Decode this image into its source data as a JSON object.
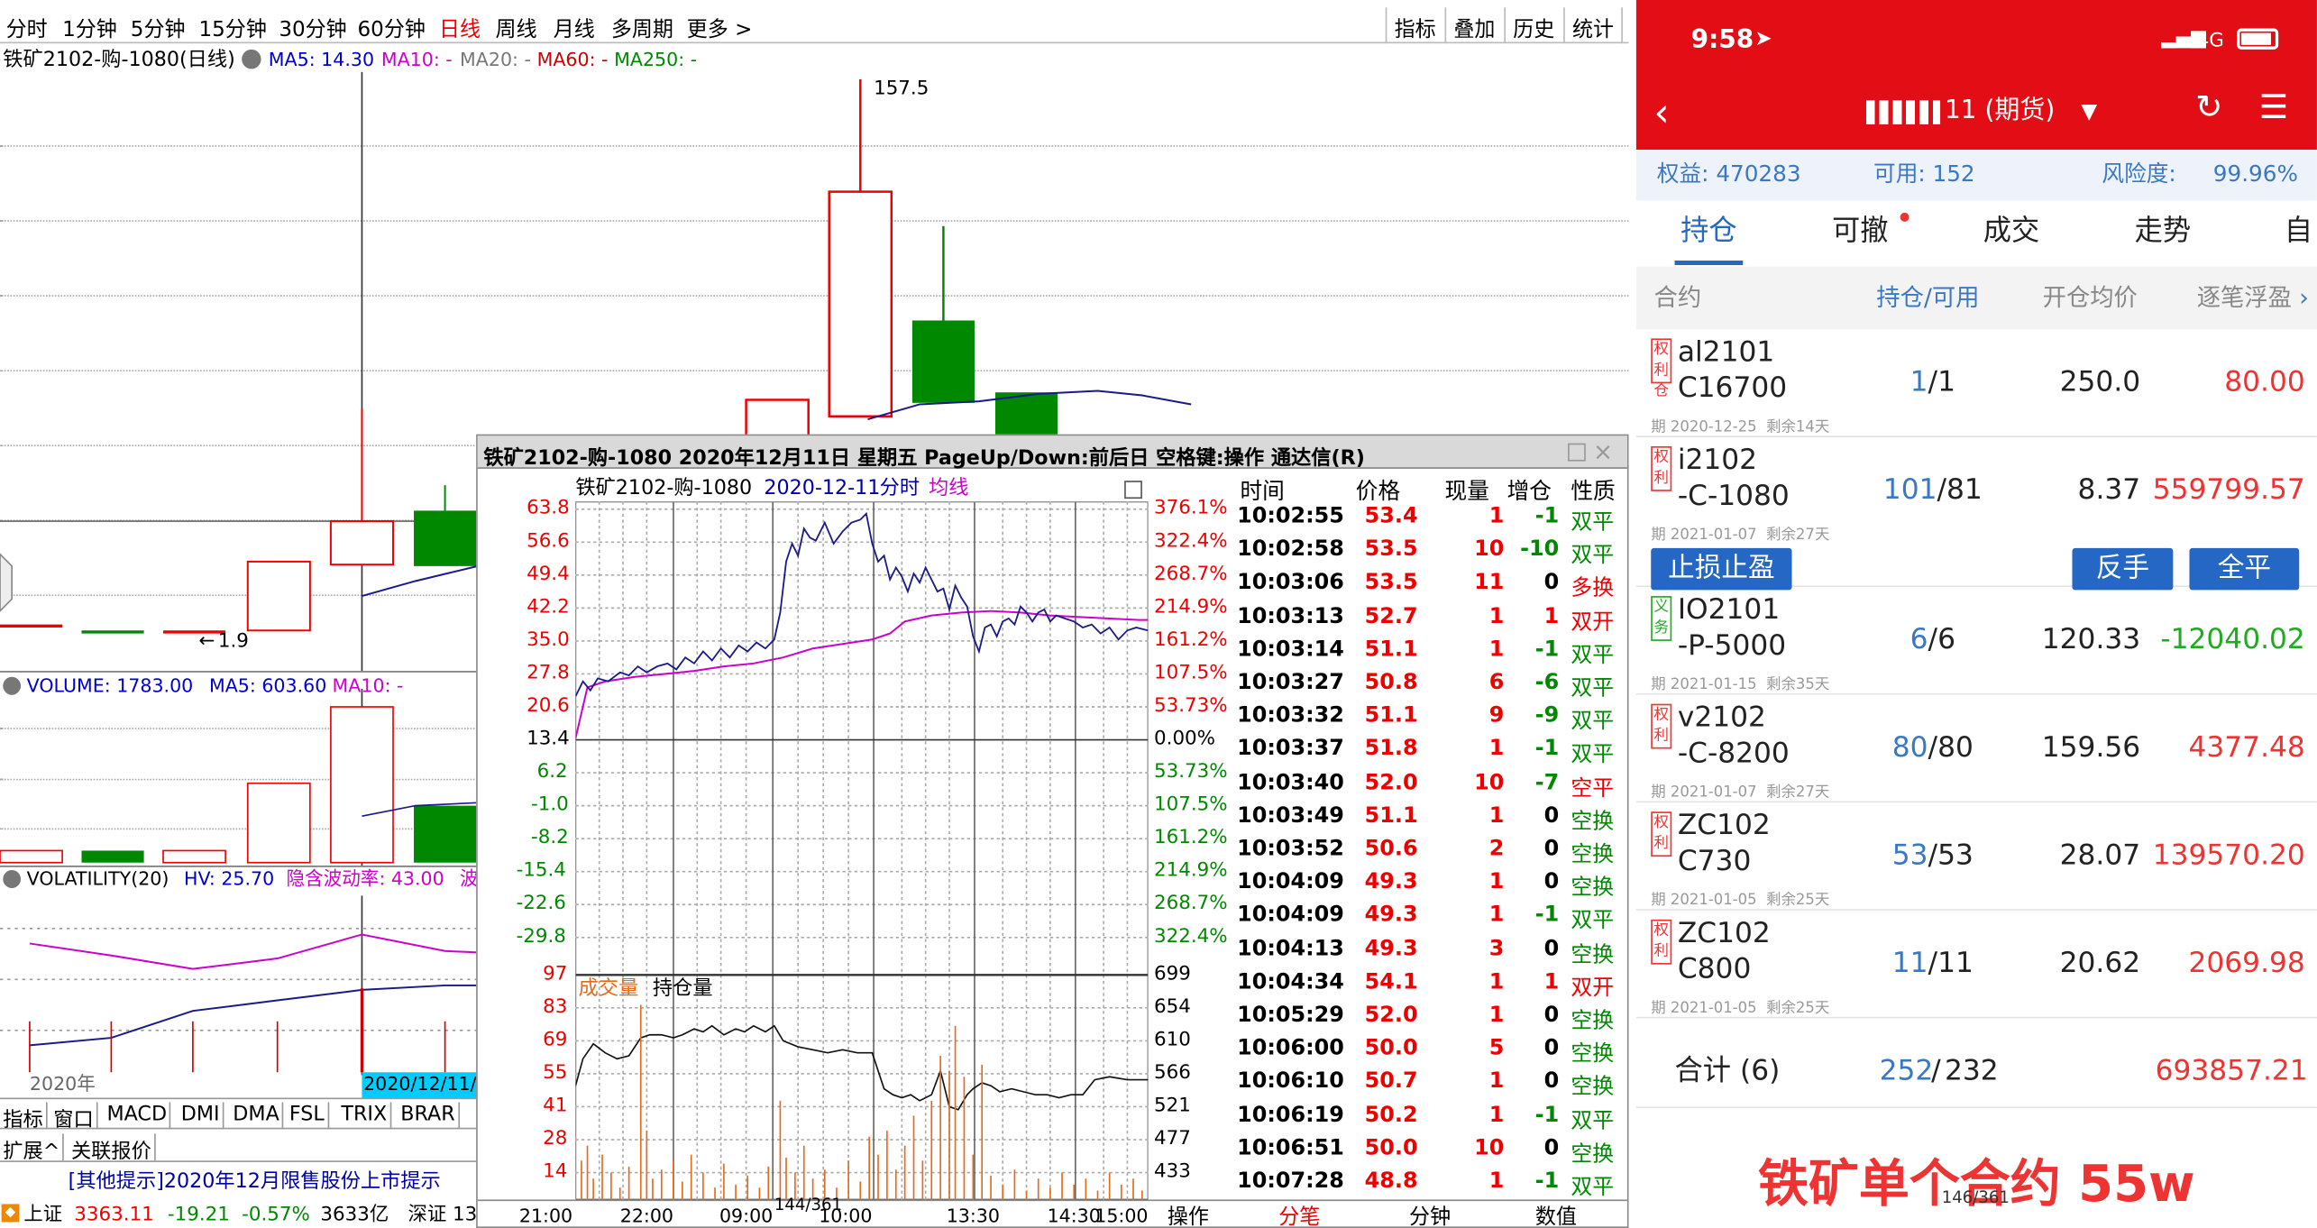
{
  "left": {
    "periods": [
      "分时",
      "1分钟",
      "5分钟",
      "15分钟",
      "30分钟",
      "60分钟",
      "日线",
      "周线",
      "月线",
      "多周期",
      "更多 >"
    ],
    "active_period": "日线",
    "right_buttons": [
      "指标",
      "叠加",
      "历史",
      "统计"
    ],
    "chart_title": "铁矿2102-购-1080(日线)",
    "ma_labels": [
      "MA5: 14.30",
      "MA10: -",
      "MA20: -",
      "MA60: -",
      "MA250: -"
    ],
    "ma_colors": [
      "#0000cc",
      "#cc00cc",
      "#777777",
      "#cc0000",
      "#008800"
    ],
    "high_mark": "157.5",
    "low_mark": "1.9",
    "volume_label": "VOLUME: 1783.00",
    "vol_ma5": "MA5: 603.60",
    "vol_ma10": "MA10: -",
    "volatility_label": "VOLATILITY(20)",
    "hv": "HV: 25.70",
    "iv": "隐含波动率: 43.00",
    "iv_extra": "波",
    "year_label": "2020年",
    "date_marker": "2020/12/11/",
    "tabs": [
      "指标",
      "窗口",
      "MACD",
      "DMI",
      "DMA",
      "FSL",
      "TRIX",
      "BRAR"
    ],
    "tabs2": [
      "扩展^",
      "关联报价"
    ],
    "notice": "[其他提示]2020年12月限售股份上市提示",
    "status": {
      "name": "上证",
      "value": "3363.11",
      "chg": "-19.21",
      "pct": "-0.57%",
      "amt": "3633亿",
      "next": "深证 13"
    }
  },
  "popup": {
    "title": "铁矿2102-购-1080 2020年12月11日 星期五 PageUp/Down:前后日 空格键:操作 通达信(R)",
    "chart_name": "铁矿2102-购-1080",
    "chart_date": "2020-12-11",
    "chart_mode": "分时",
    "avg_label": "均线",
    "price_left": [
      "63.8",
      "56.6",
      "49.4",
      "42.2",
      "35.0",
      "27.8",
      "20.6",
      "13.4",
      "6.2",
      "-1.0",
      "-8.2",
      "-15.4",
      "-22.6",
      "-29.8"
    ],
    "pct_right": [
      "376.1%",
      "322.4%",
      "268.7%",
      "214.9%",
      "161.2%",
      "107.5%",
      "53.73%",
      "0.00%",
      "53.73%",
      "107.5%",
      "161.2%",
      "214.9%",
      "268.7%",
      "322.4%"
    ],
    "vol_left": [
      "97",
      "83",
      "69",
      "55",
      "41",
      "28",
      "14"
    ],
    "oi_right": [
      "699",
      "654",
      "610",
      "566",
      "521",
      "477",
      "433"
    ],
    "vol_label": "成交量",
    "oi_label": "持仓量",
    "times": [
      "21:00",
      "22:00",
      "09:00",
      "10:00",
      "13:30",
      "14:30",
      "15:00"
    ],
    "trade_headers": [
      "时间",
      "价格",
      "现量",
      "增仓",
      "性质"
    ],
    "trades": [
      [
        "10:02:55",
        "53.4",
        "1",
        "-1",
        "双平"
      ],
      [
        "10:02:58",
        "53.5",
        "10",
        "-10",
        "双平"
      ],
      [
        "10:03:06",
        "53.5",
        "11",
        "0",
        "多换"
      ],
      [
        "10:03:13",
        "52.7",
        "1",
        "1",
        "双开"
      ],
      [
        "10:03:14",
        "51.1",
        "1",
        "-1",
        "双平"
      ],
      [
        "10:03:27",
        "50.8",
        "6",
        "-6",
        "双平"
      ],
      [
        "10:03:32",
        "51.1",
        "9",
        "-9",
        "双平"
      ],
      [
        "10:03:37",
        "51.8",
        "1",
        "-1",
        "双平"
      ],
      [
        "10:03:40",
        "52.0",
        "10",
        "-7",
        "空平"
      ],
      [
        "10:03:49",
        "51.1",
        "1",
        "0",
        "空换"
      ],
      [
        "10:03:52",
        "50.6",
        "2",
        "0",
        "空换"
      ],
      [
        "10:04:09",
        "49.3",
        "1",
        "0",
        "空换"
      ],
      [
        "10:04:09",
        "49.3",
        "1",
        "-1",
        "双平"
      ],
      [
        "10:04:13",
        "49.3",
        "3",
        "0",
        "空换"
      ],
      [
        "10:04:34",
        "54.1",
        "1",
        "1",
        "双开"
      ],
      [
        "10:05:29",
        "52.0",
        "1",
        "0",
        "空换"
      ],
      [
        "10:06:00",
        "50.0",
        "5",
        "0",
        "空换"
      ],
      [
        "10:06:10",
        "50.7",
        "1",
        "0",
        "空换"
      ],
      [
        "10:06:19",
        "50.2",
        "1",
        "-1",
        "双平"
      ],
      [
        "10:06:51",
        "50.0",
        "10",
        "0",
        "空换"
      ],
      [
        "10:07:28",
        "48.8",
        "1",
        "-1",
        "双平"
      ]
    ],
    "bottom_tabs": [
      "操作",
      "分笔",
      "分钟",
      "数值"
    ],
    "page_num": "144/361"
  },
  "phone": {
    "time": "9:58",
    "signal": "4G",
    "account_title": "11 (期货)",
    "equity": "权益: 470283",
    "available": "可用: 152",
    "risk_label": "风险度:",
    "risk_value": "99.96%",
    "tabs": [
      "持仓",
      "可撤",
      "成交",
      "走势",
      "自"
    ],
    "headers": [
      "合约",
      "持仓/可用",
      "开仓均价",
      "逐笔浮盈"
    ],
    "positions": [
      {
        "tag": "权利仓",
        "tag_type": "red",
        "sym1": "al2101",
        "sym2": "C16700",
        "exp": "2020-12-25",
        "remain": "剩余14天",
        "hold": "1",
        "avail": "1",
        "avg": "250.0",
        "pnl": "80.00",
        "pnl_color": "#e33"
      },
      {
        "tag": "权利",
        "tag_type": "red",
        "sym1": "i2102",
        "sym2": "-C-1080",
        "exp": "2021-01-07",
        "remain": "剩余27天",
        "hold": "101",
        "avail": "81",
        "avg": "8.37",
        "pnl": "559799.57",
        "pnl_color": "#e33"
      },
      {
        "tag": "义务",
        "tag_type": "green",
        "sym1": "IO2101",
        "sym2": "-P-5000",
        "exp": "2021-01-15",
        "remain": "剩余35天",
        "hold": "6",
        "avail": "6",
        "avg": "120.33",
        "pnl": "-12040.02",
        "pnl_color": "#2a2"
      },
      {
        "tag": "权利",
        "tag_type": "red",
        "sym1": "v2102",
        "sym2": "-C-8200",
        "exp": "2021-01-07",
        "remain": "剩余27天",
        "hold": "80",
        "avail": "80",
        "avg": "159.56",
        "pnl": "4377.48",
        "pnl_color": "#e33"
      },
      {
        "tag": "权利",
        "tag_type": "red",
        "sym1": "ZC102",
        "sym2": "C730",
        "exp": "2021-01-05",
        "remain": "剩余25天",
        "hold": "53",
        "avail": "53",
        "avg": "28.07",
        "pnl": "139570.20",
        "pnl_color": "#e33"
      },
      {
        "tag": "权利",
        "tag_type": "red",
        "sym1": "ZC102",
        "sym2": "C800",
        "exp": "2021-01-05",
        "remain": "剩余25天",
        "hold": "11",
        "avail": "11",
        "avg": "20.62",
        "pnl": "2069.98",
        "pnl_color": "#e33"
      }
    ],
    "buttons": [
      "止损止盈",
      "反手",
      "全平"
    ],
    "total_label": "合计 (6)",
    "total_hold": "252",
    "total_avail": "232",
    "total_pnl": "693857.21",
    "caption": "铁矿单个合约 55w",
    "page_num": "146/361"
  }
}
